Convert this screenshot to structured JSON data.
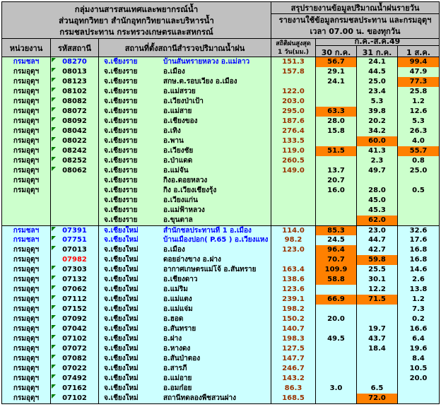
{
  "colors": {
    "header_bg": "#C0C0C0",
    "section_chiangrai_bg": "#CCFFCC",
    "section_chiangmai_bg": "#CCFFFF",
    "highlight_orange": "#FF8000",
    "max_stat_text": "#993300",
    "irrigation_dept_text": "#0000FF",
    "alert_code_text": "#FF0000",
    "error_triangle": "#008000",
    "border": "#000000"
  },
  "header": {
    "left_lines": [
      "กลุ่มงานสารสนเทศและพยากรณ์น้ำ",
      "ส่วนอุทกวิทยา สำนักอุทกวิทยาและบริหารน้ำ",
      "กรมชลประทาน กระทรวงเกษตรและสหกรณ์"
    ],
    "right_line1": "สรุปรายงานข้อมูลปริมาณน้ำฝนรายวัน",
    "right_line2": "รายงานใช้ข้อมูลกรมชลประทาน และกรมอุตุฯ",
    "right_line3": "เวลา 07.00 น. ของทุกวัน",
    "columns": {
      "agency": "หน่วยงาน",
      "station_code": "รหัสสถานี",
      "location": "สถานที่ตั้งสถานีสำรวจปริมาณน้ำฝน",
      "max_stat_line1": "สถิติฝนสูงสุด",
      "max_stat_line2": "1 วัน(มม.)",
      "period": "ก.ค.-ส.ค.49",
      "dates": [
        "30 ก.ค.",
        "31 ก.ค.",
        "1 ส.ค."
      ]
    }
  },
  "rows": [
    {
      "sec": "cr",
      "agency": "กรมชลฯ",
      "blue": true,
      "code": "08270",
      "tri": true,
      "province": "จ.เชียงราย",
      "location": "บ้านสันทรายหลวง  อ.แม่ลาว",
      "stat": "151.3",
      "vals": [
        "56.7",
        "24.1",
        "99.4"
      ],
      "hl": [
        true,
        false,
        true
      ]
    },
    {
      "sec": "cr",
      "agency": "กรมอุตุฯ",
      "code": "08013",
      "tri": true,
      "province": "จ.เชียงราย",
      "location": "อ.เมือง",
      "stat": "157.8",
      "vals": [
        "29.1",
        "44.5",
        "47.9"
      ],
      "hl": [
        false,
        false,
        false
      ]
    },
    {
      "sec": "cr",
      "agency": "กรมอุตุฯ",
      "code": "08123",
      "tri": true,
      "province": "จ.เชียงราย",
      "location": "สกษ.ต.รอบเวียง  อ.เมือง",
      "stat": "",
      "vals": [
        "24.1",
        "25.0",
        "77.3"
      ],
      "hl": [
        false,
        false,
        true
      ]
    },
    {
      "sec": "cr",
      "agency": "กรมอุตุฯ",
      "code": "08102",
      "tri": true,
      "province": "จ.เชียงราย",
      "location": "อ.แม่สรวย",
      "stat": "122.0",
      "vals": [
        "",
        "23.4",
        "25.8"
      ],
      "hl": [
        false,
        false,
        false
      ]
    },
    {
      "sec": "cr",
      "agency": "กรมอุตุฯ",
      "code": "08082",
      "tri": true,
      "province": "จ.เชียงราย",
      "location": "อ.เวียงป่าเป้า",
      "stat": "203.0",
      "vals": [
        "",
        "5.3",
        "1.2"
      ],
      "hl": [
        false,
        false,
        false
      ]
    },
    {
      "sec": "cr",
      "agency": "กรมอุตุฯ",
      "code": "08072",
      "tri": true,
      "province": "จ.เชียงราย",
      "location": "อ.แม่สาย",
      "stat": "295.0",
      "vals": [
        "63.3",
        "39.8",
        "12.6"
      ],
      "hl": [
        true,
        false,
        false
      ]
    },
    {
      "sec": "cr",
      "agency": "กรมอุตุฯ",
      "code": "08092",
      "tri": true,
      "province": "จ.เชียงราย",
      "location": "อ.เชียงของ",
      "stat": "187.6",
      "vals": [
        "28.0",
        "20.2",
        "5.3"
      ],
      "hl": [
        false,
        false,
        false
      ]
    },
    {
      "sec": "cr",
      "agency": "กรมอุตุฯ",
      "code": "08042",
      "tri": true,
      "province": "จ.เชียงราย",
      "location": "อ.เทิง",
      "stat": "276.4",
      "vals": [
        "15.8",
        "34.2",
        "26.3"
      ],
      "hl": [
        false,
        false,
        false
      ]
    },
    {
      "sec": "cr",
      "agency": "กรมอุตุฯ",
      "code": "08022",
      "tri": true,
      "province": "จ.เชียงราย",
      "location": "อ.พาน",
      "stat": "133.5",
      "vals": [
        "",
        "60.0",
        "4.0"
      ],
      "hl": [
        false,
        true,
        false
      ]
    },
    {
      "sec": "cr",
      "agency": "กรมอุตุฯ",
      "code": "08242",
      "tri": true,
      "province": "จ.เชียงราย",
      "location": "อ.เวียงชัย",
      "stat": "119.0",
      "vals": [
        "51.5",
        "41.3",
        "55.7"
      ],
      "hl": [
        true,
        false,
        true
      ]
    },
    {
      "sec": "cr",
      "agency": "กรมอุตุฯ",
      "code": "08252",
      "tri": true,
      "province": "จ.เชียงราย",
      "location": "อ.ป่าแดด",
      "stat": "260.5",
      "vals": [
        "",
        "2.3",
        "0.8"
      ],
      "hl": [
        false,
        false,
        false
      ]
    },
    {
      "sec": "cr",
      "agency": "กรมอุตุฯ",
      "code": "08062",
      "tri": true,
      "province": "จ.เชียงราย",
      "location": "อ.แม่จัน",
      "stat": "149.0",
      "vals": [
        "13.7",
        "49.7",
        "25.0"
      ],
      "hl": [
        false,
        false,
        false
      ]
    },
    {
      "sec": "cr",
      "agency": "กรมอุตุฯ",
      "code": "",
      "province": "จ.เชียงราย",
      "location": "กิ่งอ.ดอยหลวง",
      "stat": "",
      "vals": [
        "20.7",
        "",
        ""
      ],
      "hl": [
        false,
        false,
        false
      ]
    },
    {
      "sec": "cr",
      "agency": "กรมอุตุฯ",
      "code": "",
      "province": "จ.เชียงราย",
      "location": "กิ่ง อ.เวียงเชียงรุ้ง",
      "stat": "",
      "vals": [
        "16.0",
        "28.0",
        "0.5"
      ],
      "hl": [
        false,
        false,
        false
      ]
    },
    {
      "sec": "cr",
      "agency": "",
      "code": "",
      "province": "จ.เชียงราย",
      "location": "อ.เวียงแก่น",
      "stat": "",
      "vals": [
        "",
        "45.0",
        ""
      ],
      "hl": [
        false,
        false,
        false
      ]
    },
    {
      "sec": "cr",
      "agency": "",
      "code": "",
      "province": "จ.เชียงราย",
      "location": "อ.แม่ฟ้าหลวง",
      "stat": "",
      "vals": [
        "",
        "45.3",
        ""
      ],
      "hl": [
        false,
        false,
        false
      ]
    },
    {
      "sec": "cr",
      "agency": "",
      "code": "",
      "province": "จ.เชียงราย",
      "location": "อ.ขุนตาล",
      "stat": "",
      "vals": [
        "",
        "62.0",
        ""
      ],
      "hl": [
        false,
        true,
        false
      ]
    },
    {
      "sec": "cm",
      "agency": "กรมชลฯ",
      "blue": true,
      "code": "07391",
      "tri": true,
      "province": "จ.เชียงใหม่",
      "location": "สำนักชลประทานที่ 1   อ.เมือง",
      "stat": "114.0",
      "vals": [
        "85.3",
        "23.0",
        "32.6"
      ],
      "hl": [
        true,
        false,
        false
      ]
    },
    {
      "sec": "cm",
      "agency": "กรมชลฯ",
      "blue": true,
      "code": "07751",
      "tri": true,
      "province": "จ.เชียงใหม่",
      "location": "บ้านเมืองปอก( P.65 )   อ.เวียงแหง",
      "stat": "98.2",
      "vals": [
        "24.5",
        "44.7",
        "17.6"
      ],
      "hl": [
        false,
        false,
        false
      ]
    },
    {
      "sec": "cm",
      "agency": "กรมอุตุฯ",
      "code": "07013",
      "tri": true,
      "province": "จ.เชียงใหม่",
      "location": "อ.เมือง",
      "stat": "123.0",
      "vals": [
        "96.4",
        "42.7",
        "16.8"
      ],
      "hl": [
        true,
        false,
        false
      ]
    },
    {
      "sec": "cm",
      "agency": "กรมอุตุฯ",
      "code": "07982",
      "codeRed": true,
      "province": "จ.เชียงใหม่",
      "location": "ดอยอ่างขาง  อ.ฝาง",
      "stat": "",
      "vals": [
        "70.7",
        "59.8",
        "16.8"
      ],
      "hl": [
        true,
        true,
        false
      ]
    },
    {
      "sec": "cm",
      "agency": "กรมอุตุฯ",
      "code": "07303",
      "tri": true,
      "province": "จ.เชียงใหม่",
      "location": "อากาศเกษตรแม่โจ้  อ.สันทราย",
      "stat": "163.4",
      "vals": [
        "109.9",
        "25.5",
        "14.6"
      ],
      "hl": [
        true,
        false,
        false
      ]
    },
    {
      "sec": "cm",
      "agency": "กรมอุตุฯ",
      "code": "07132",
      "tri": true,
      "province": "จ.เชียงใหม่",
      "location": "อ.เชียงดาว",
      "stat": "138.6",
      "vals": [
        "58.8",
        "30.1",
        "2.6"
      ],
      "hl": [
        true,
        false,
        false
      ]
    },
    {
      "sec": "cm",
      "agency": "กรมอุตุฯ",
      "code": "07062",
      "tri": true,
      "province": "จ.เชียงใหม่",
      "location": "อ.แม่ริม",
      "stat": "123.6",
      "vals": [
        "",
        "12.2",
        "13.8"
      ],
      "hl": [
        false,
        false,
        false
      ]
    },
    {
      "sec": "cm",
      "agency": "กรมอุตุฯ",
      "code": "07112",
      "tri": true,
      "province": "จ.เชียงใหม่",
      "location": "อ.แม่แตง",
      "stat": "239.1",
      "vals": [
        "66.9",
        "71.5",
        "1.2"
      ],
      "hl": [
        true,
        true,
        false
      ]
    },
    {
      "sec": "cm",
      "agency": "กรมอุตุฯ",
      "code": "07152",
      "tri": true,
      "province": "จ.เชียงใหม่",
      "location": "อ.แม่แจ่ม",
      "stat": "198.2",
      "vals": [
        "",
        "",
        "7.3"
      ],
      "hl": [
        false,
        false,
        false
      ]
    },
    {
      "sec": "cm",
      "agency": "กรมอุตุฯ",
      "code": "07092",
      "tri": true,
      "province": "จ.เชียงใหม่",
      "location": "อ.ฮอด",
      "stat": "150.2",
      "vals": [
        "20.0",
        "",
        "0.2"
      ],
      "hl": [
        false,
        false,
        false
      ]
    },
    {
      "sec": "cm",
      "agency": "กรมอุตุฯ",
      "code": "07042",
      "tri": true,
      "province": "จ.เชียงใหม่",
      "location": "อ.สันทราย",
      "stat": "140.7",
      "vals": [
        "",
        "19.7",
        "16.6"
      ],
      "hl": [
        false,
        false,
        false
      ]
    },
    {
      "sec": "cm",
      "agency": "กรมอุตุฯ",
      "code": "07102",
      "tri": true,
      "province": "จ.เชียงใหม่",
      "location": "อ.ฝาง",
      "stat": "198.3",
      "vals": [
        "49.5",
        "43.7",
        "6.4"
      ],
      "hl": [
        false,
        false,
        false
      ]
    },
    {
      "sec": "cm",
      "agency": "กรมอุตุฯ",
      "code": "07072",
      "tri": true,
      "province": "จ.เชียงใหม่",
      "location": "อ.หางดง",
      "stat": "127.5",
      "vals": [
        "",
        "18.4",
        "19.6"
      ],
      "hl": [
        false,
        false,
        false
      ]
    },
    {
      "sec": "cm",
      "agency": "กรมอุตุฯ",
      "code": "07082",
      "tri": true,
      "province": "จ.เชียงใหม่",
      "location": "อ.สันป่าตอง",
      "stat": "147.7",
      "vals": [
        "",
        "",
        "8.4"
      ],
      "hl": [
        false,
        false,
        false
      ]
    },
    {
      "sec": "cm",
      "agency": "กรมอุตุฯ",
      "code": "07022",
      "tri": true,
      "province": "จ.เชียงใหม่",
      "location": "อ.สารภี",
      "stat": "246.7",
      "vals": [
        "",
        "",
        "10.5"
      ],
      "hl": [
        false,
        false,
        false
      ]
    },
    {
      "sec": "cm",
      "agency": "กรมอุตุฯ",
      "code": "07492",
      "tri": true,
      "province": "จ.เชียงใหม่",
      "location": "อ.แม่อาย",
      "stat": "143.2",
      "vals": [
        "",
        "",
        "20.0"
      ],
      "hl": [
        false,
        false,
        false
      ]
    },
    {
      "sec": "cm",
      "agency": "กรมอุตุฯ",
      "code": "07162",
      "tri": true,
      "province": "จ.เชียงใหม่",
      "location": "อ.อมก๋อย",
      "stat": "86.3",
      "vals": [
        "3.0",
        "6.5",
        ""
      ],
      "hl": [
        false,
        false,
        false
      ]
    },
    {
      "sec": "cm",
      "agency": "กรมอุตุฯ",
      "code": "07102",
      "tri": true,
      "province": "จ.เชียงใหม่",
      "location": "สถานีทดลองพืชสวนฝาง",
      "stat": "168.5",
      "vals": [
        "",
        "72.0",
        ""
      ],
      "hl": [
        false,
        true,
        false
      ]
    }
  ]
}
